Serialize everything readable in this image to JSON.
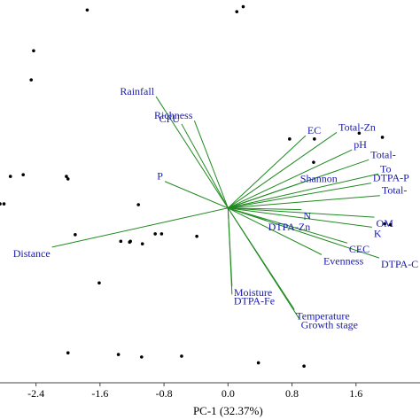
{
  "chart_data": {
    "type": "scatter",
    "subtype": "pca-biplot",
    "title": "",
    "xlabel": "PC-1 (32.37%)",
    "ylabel": "",
    "xlim": [
      -2.85,
      2.4
    ],
    "ylim": [
      -2.1,
      2.5
    ],
    "x_ticks": [
      -2.4,
      -1.6,
      -0.8,
      0.0,
      0.8,
      1.6
    ],
    "x_tick_labels": [
      "-2.4",
      "-1.6",
      "-0.8",
      "0.0",
      "0.8",
      "1.6"
    ],
    "grid": false,
    "legend": "none",
    "colors": {
      "vector": "#1f8a1f",
      "label": "#1a1ab0",
      "point": "#000000",
      "axis": "#444444"
    },
    "scores": [
      {
        "x": -1.76,
        "y": 2.38
      },
      {
        "x": 0.11,
        "y": 2.36
      },
      {
        "x": 0.19,
        "y": 2.42
      },
      {
        "x": -2.43,
        "y": 1.89
      },
      {
        "x": -2.46,
        "y": 1.54
      },
      {
        "x": 0.77,
        "y": 0.83
      },
      {
        "x": 1.08,
        "y": 0.83
      },
      {
        "x": 1.64,
        "y": 0.9
      },
      {
        "x": 1.93,
        "y": 0.85
      },
      {
        "x": -2.72,
        "y": 0.38
      },
      {
        "x": -2.56,
        "y": 0.4
      },
      {
        "x": -2.02,
        "y": 0.38
      },
      {
        "x": -2.0,
        "y": 0.35
      },
      {
        "x": -2.85,
        "y": 0.05
      },
      {
        "x": -2.8,
        "y": 0.05
      },
      {
        "x": -1.12,
        "y": 0.04
      },
      {
        "x": -1.91,
        "y": -0.32
      },
      {
        "x": -1.34,
        "y": -0.4
      },
      {
        "x": -1.23,
        "y": -0.41
      },
      {
        "x": -1.22,
        "y": -0.4
      },
      {
        "x": -1.07,
        "y": -0.43
      },
      {
        "x": -0.91,
        "y": -0.31
      },
      {
        "x": -0.83,
        "y": -0.31
      },
      {
        "x": -0.39,
        "y": -0.34
      },
      {
        "x": -1.61,
        "y": -0.9
      },
      {
        "x": 1.07,
        "y": 0.55
      },
      {
        "x": 1.96,
        "y": -0.19
      },
      {
        "x": 2.03,
        "y": -0.2
      },
      {
        "x": -2.0,
        "y": -1.74
      },
      {
        "x": -1.37,
        "y": -1.76
      },
      {
        "x": -1.08,
        "y": -1.79
      },
      {
        "x": -0.58,
        "y": -1.78
      },
      {
        "x": 0.38,
        "y": -1.86
      },
      {
        "x": 0.95,
        "y": -1.9
      }
    ],
    "loadings": [
      {
        "name": "Rainfall",
        "x": -0.9,
        "y": 1.34
      },
      {
        "name": "CFU",
        "x": -0.58,
        "y": 1.01
      },
      {
        "name": "Richness",
        "x": -0.42,
        "y": 1.05
      },
      {
        "name": "EC",
        "x": 0.97,
        "y": 0.87
      },
      {
        "name": "Total-Zn",
        "x": 1.36,
        "y": 0.91
      },
      {
        "name": "pH",
        "x": 1.55,
        "y": 0.7
      },
      {
        "name": "Total-",
        "x": 1.76,
        "y": 0.58
      },
      {
        "name": "To",
        "x": 1.88,
        "y": 0.41
      },
      {
        "name": "Shannon",
        "x": 0.88,
        "y": 0.29
      },
      {
        "name": "DTPA-P",
        "x": 1.79,
        "y": 0.3
      },
      {
        "name": "Total-",
        "x": 1.9,
        "y": 0.15
      },
      {
        "name": "N",
        "x": 0.92,
        "y": -0.02
      },
      {
        "name": "OM",
        "x": 1.83,
        "y": -0.11
      },
      {
        "name": "K",
        "x": 1.8,
        "y": -0.23
      },
      {
        "name": "DTPA-Zn",
        "x": 0.48,
        "y": -0.15
      },
      {
        "name": "CEC",
        "x": 1.49,
        "y": -0.42
      },
      {
        "name": "Evenness",
        "x": 1.17,
        "y": -0.56
      },
      {
        "name": "DTPA-C",
        "x": 1.89,
        "y": -0.6
      },
      {
        "name": "P",
        "x": -0.79,
        "y": 0.32
      },
      {
        "name": "Distance",
        "x": -2.2,
        "y": -0.47
      },
      {
        "name": "Moisture",
        "x": 0.05,
        "y": -0.94
      },
      {
        "name": "DTPA-Fe",
        "x": 0.05,
        "y": -1.04
      },
      {
        "name": "Temperature",
        "x": 0.83,
        "y": -1.22
      },
      {
        "name": "Growth stage",
        "x": 0.89,
        "y": -1.33
      }
    ]
  }
}
